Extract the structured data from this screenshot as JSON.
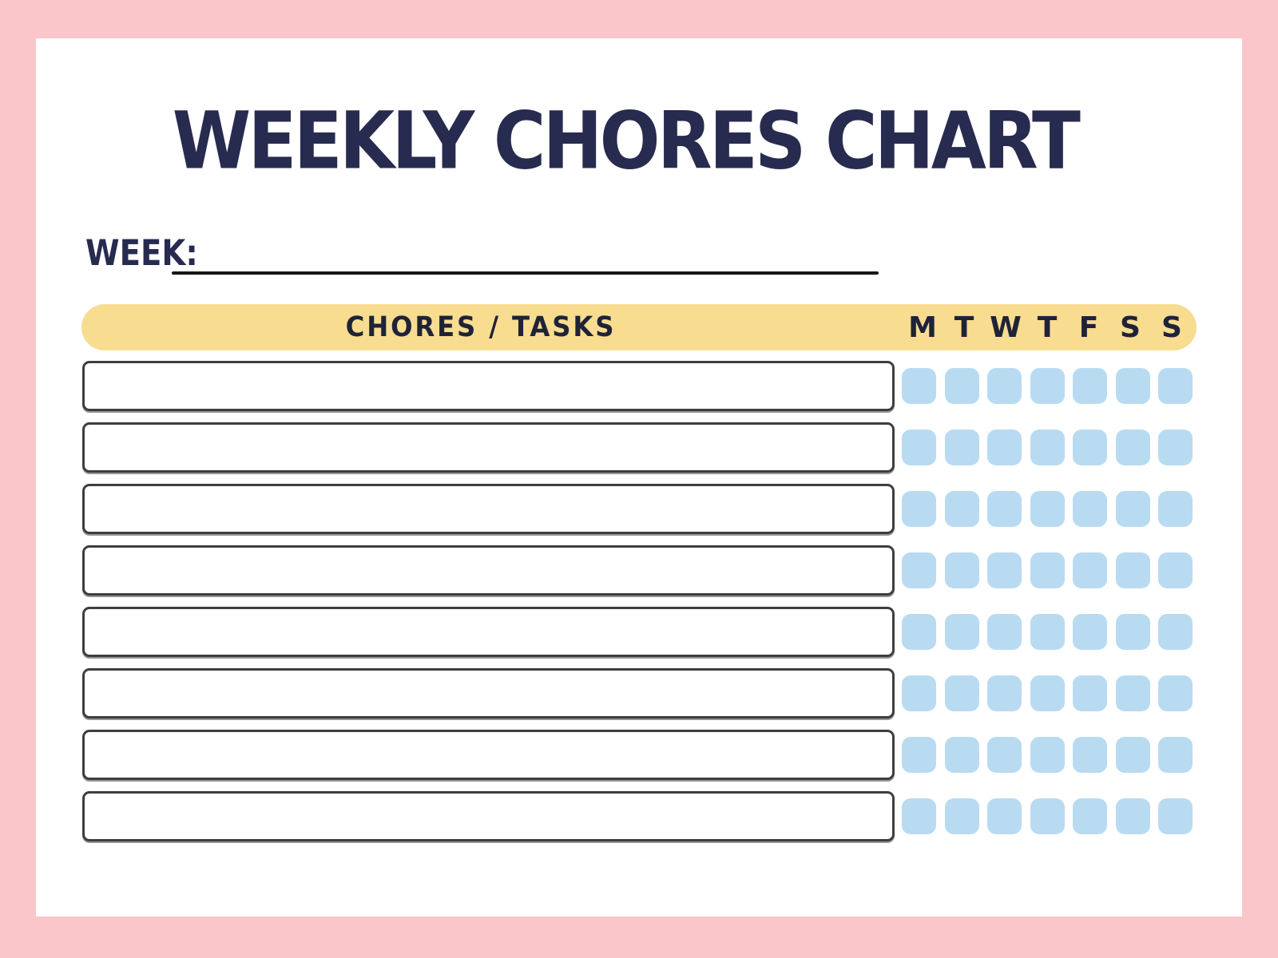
{
  "page": {
    "title": "WEEKLY CHORES CHART"
  },
  "week": {
    "label": "WEEK:",
    "value": ""
  },
  "header": {
    "chores_label": "CHORES / TASKS",
    "days": [
      "M",
      "T",
      "W",
      "T",
      "F",
      "S",
      "S"
    ]
  },
  "grid": {
    "row_count": 8,
    "rows": [
      {
        "task": "",
        "checked": [
          false,
          false,
          false,
          false,
          false,
          false,
          false
        ]
      },
      {
        "task": "",
        "checked": [
          false,
          false,
          false,
          false,
          false,
          false,
          false
        ]
      },
      {
        "task": "",
        "checked": [
          false,
          false,
          false,
          false,
          false,
          false,
          false
        ]
      },
      {
        "task": "",
        "checked": [
          false,
          false,
          false,
          false,
          false,
          false,
          false
        ]
      },
      {
        "task": "",
        "checked": [
          false,
          false,
          false,
          false,
          false,
          false,
          false
        ]
      },
      {
        "task": "",
        "checked": [
          false,
          false,
          false,
          false,
          false,
          false,
          false
        ]
      },
      {
        "task": "",
        "checked": [
          false,
          false,
          false,
          false,
          false,
          false,
          false
        ]
      },
      {
        "task": "",
        "checked": [
          false,
          false,
          false,
          false,
          false,
          false,
          false
        ]
      }
    ]
  },
  "colors": {
    "frame_pink": "#fbc6ca",
    "header_yellow": "#f8dc90",
    "checkbox_blue": "#b9dbf2",
    "title_navy": "#272b4f"
  }
}
